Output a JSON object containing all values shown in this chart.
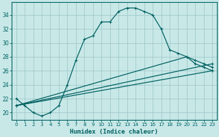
{
  "xlabel": "Humidex (Indice chaleur)",
  "background_color": "#c8e8e8",
  "grid_color": "#a0c8c8",
  "line_color": "#006060",
  "xlim": [
    -0.5,
    23.5
  ],
  "ylim": [
    19.0,
    35.8
  ],
  "yticks": [
    20,
    22,
    24,
    26,
    28,
    30,
    32,
    34
  ],
  "xticks": [
    0,
    1,
    2,
    3,
    4,
    5,
    6,
    7,
    8,
    9,
    10,
    11,
    12,
    13,
    14,
    15,
    16,
    17,
    18,
    19,
    20,
    21,
    22,
    23
  ],
  "curve1_x": [
    0,
    1,
    2,
    3,
    4,
    5,
    6,
    7,
    8,
    9,
    10,
    11,
    12,
    13,
    14,
    15,
    16,
    17,
    18,
    19,
    20,
    21,
    22,
    23
  ],
  "curve1_y": [
    22,
    21,
    20,
    19.5,
    20,
    21,
    24,
    27.5,
    30.5,
    31,
    33,
    33,
    34.5,
    35,
    35,
    34.5,
    34,
    32,
    29,
    28.5,
    28,
    27,
    26.5,
    26
  ],
  "line2_x": [
    0,
    20,
    21,
    22,
    23
  ],
  "line2_y": [
    21,
    28,
    27.5,
    27,
    26.5
  ],
  "line3_x": [
    0,
    23
  ],
  "line3_y": [
    21,
    27
  ],
  "line4_x": [
    0,
    23
  ],
  "line4_y": [
    21,
    26
  ]
}
